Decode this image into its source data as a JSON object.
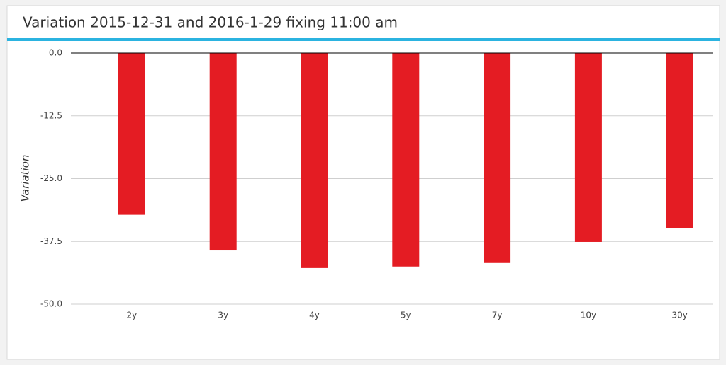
{
  "chart_data": {
    "type": "bar",
    "title": "Variation 2015-12-31 and 2016-1-29 fixing 11:00 am",
    "y_label": "Variation",
    "categories": [
      "2y",
      "3y",
      "4y",
      "5y",
      "7y",
      "10y",
      "30y"
    ],
    "values": [
      -32.2,
      -39.3,
      -42.8,
      -42.5,
      -41.8,
      -37.6,
      -34.8
    ],
    "color": "#e41c23",
    "ylim": [
      -50,
      0
    ],
    "yticks": [
      {
        "value": 0,
        "label": "0.0"
      },
      -12.5,
      {
        "value": -25,
        "label": "-25.0"
      },
      -37.5,
      {
        "value": -50,
        "label": "-50.0"
      }
    ],
    "grid": true
  }
}
